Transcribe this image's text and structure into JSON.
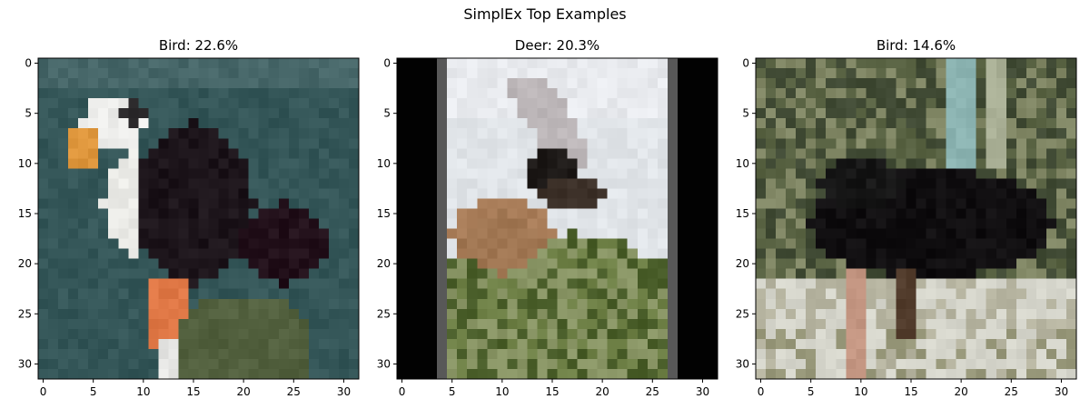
{
  "figure": {
    "title": "SimplEx Top Examples"
  },
  "chart_data": [
    {
      "type": "image",
      "title": "Bird: 22.6%",
      "label": "Bird",
      "weight_percent": 22.6,
      "image_size": [
        32,
        32
      ],
      "xlim": [
        -0.5,
        31.5
      ],
      "ylim": [
        31.5,
        -0.5
      ],
      "xticks": [
        0,
        5,
        10,
        15,
        20,
        25,
        30
      ],
      "yticks": [
        0,
        5,
        10,
        15,
        20,
        25,
        30
      ],
      "content": "puffin-like bird on teal background"
    },
    {
      "type": "image",
      "title": "Deer: 20.3%",
      "label": "Deer",
      "weight_percent": 20.3,
      "image_size": [
        32,
        32
      ],
      "xlim": [
        -0.5,
        31.5
      ],
      "ylim": [
        31.5,
        -0.5
      ],
      "xticks": [
        0,
        5,
        10,
        15,
        20,
        25,
        30
      ],
      "yticks": [
        0,
        5,
        10,
        15,
        20,
        25,
        30
      ],
      "content": "deer on green hill, pale sky, black side borders"
    },
    {
      "type": "image",
      "title": "Bird: 14.6%",
      "label": "Bird",
      "weight_percent": 14.6,
      "image_size": [
        32,
        32
      ],
      "xlim": [
        -0.5,
        31.5
      ],
      "ylim": [
        31.5,
        -0.5
      ],
      "xticks": [
        0,
        5,
        10,
        15,
        20,
        25,
        30
      ],
      "yticks": [
        0,
        5,
        10,
        15,
        20,
        25,
        30
      ],
      "content": "dark ostrich-like bird, mottled background"
    }
  ]
}
